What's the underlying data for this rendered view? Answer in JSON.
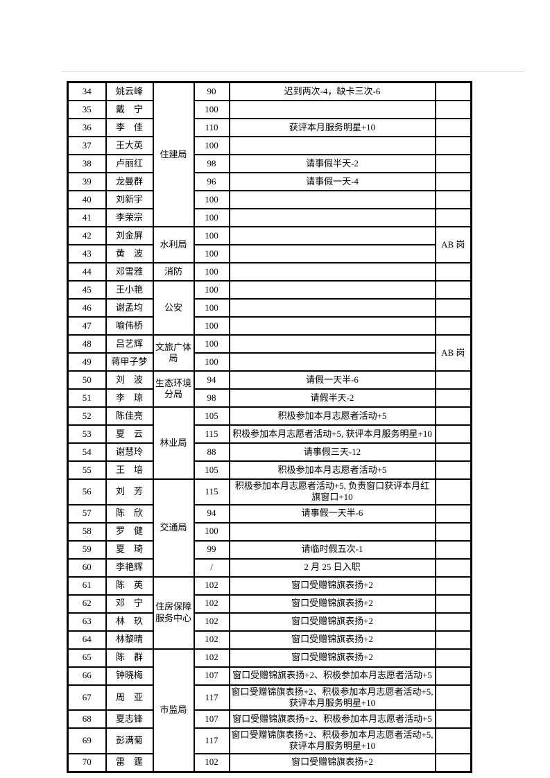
{
  "page": {
    "background": "#ffffff",
    "rule_color": "#dcdcdc"
  },
  "table": {
    "border_color": "#000000",
    "rows": [
      {
        "no": "34",
        "name": "姚云峰",
        "dept": "住建局",
        "dept_span": 8,
        "score": "90",
        "remark": "迟到两次-4，缺卡三次-6",
        "note": "",
        "note_span": 1
      },
      {
        "no": "35",
        "name": "戴　宁",
        "score": "100",
        "remark": "",
        "note": "",
        "note_span": 1
      },
      {
        "no": "36",
        "name": "李　佳",
        "score": "110",
        "remark": "获评本月服务明星+10",
        "note": "",
        "note_span": 1
      },
      {
        "no": "37",
        "name": "王大英",
        "score": "100",
        "remark": "",
        "note": "",
        "note_span": 1
      },
      {
        "no": "38",
        "name": "卢丽红",
        "score": "98",
        "remark": "请事假半天-2",
        "note": "",
        "note_span": 1
      },
      {
        "no": "39",
        "name": "龙曼群",
        "score": "96",
        "remark": "请事假一天-4",
        "note": "",
        "note_span": 1
      },
      {
        "no": "40",
        "name": "刘新宇",
        "score": "100",
        "remark": "",
        "note": "",
        "note_span": 1
      },
      {
        "no": "41",
        "name": "李荣宗",
        "score": "100",
        "remark": "",
        "note": "",
        "note_span": 1
      },
      {
        "no": "42",
        "name": "刘金屏",
        "dept": "水利局",
        "dept_span": 2,
        "score": "100",
        "remark": "",
        "note": "AB 岗",
        "note_span": 2
      },
      {
        "no": "43",
        "name": "黄　波",
        "score": "100",
        "remark": ""
      },
      {
        "no": "44",
        "name": "邓雪雅",
        "dept": "消防",
        "dept_span": 1,
        "score": "100",
        "remark": "",
        "note": "",
        "note_span": 1
      },
      {
        "no": "45",
        "name": "王小艳",
        "dept": "公安",
        "dept_span": 3,
        "score": "100",
        "remark": "",
        "note": "",
        "note_span": 1
      },
      {
        "no": "46",
        "name": "谢孟均",
        "score": "100",
        "remark": "",
        "note": "",
        "note_span": 1
      },
      {
        "no": "47",
        "name": "喻伟桥",
        "score": "100",
        "remark": "",
        "note": "",
        "note_span": 1
      },
      {
        "no": "48",
        "name": "吕艺辉",
        "dept": "文旅广体局",
        "dept_span": 2,
        "score": "100",
        "remark": "",
        "note": "AB 岗",
        "note_span": 2
      },
      {
        "no": "49",
        "name": "蒋甲子梦",
        "score": "100",
        "remark": ""
      },
      {
        "no": "50",
        "name": "刘　波",
        "dept": "生态环境分局",
        "dept_span": 2,
        "score": "94",
        "remark": "请假一天半-6",
        "note": "",
        "note_span": 1
      },
      {
        "no": "51",
        "name": "李　琼",
        "score": "98",
        "remark": "请假半天-2",
        "note": "",
        "note_span": 1
      },
      {
        "no": "52",
        "name": "陈佳亮",
        "dept": "林业局",
        "dept_span": 4,
        "score": "105",
        "remark": "积极参加本月志愿者活动+5",
        "note": "",
        "note_span": 1
      },
      {
        "no": "53",
        "name": "夏　云",
        "score": "115",
        "remark": "积极参加本月志愿者活动+5, 获评本月服务明星+10",
        "note": "",
        "note_span": 1
      },
      {
        "no": "54",
        "name": "谢慧玲",
        "score": "88",
        "remark": "请事假三天-12",
        "note": "",
        "note_span": 1
      },
      {
        "no": "55",
        "name": "王　培",
        "score": "105",
        "remark": "积极参加本月志愿者活动+5",
        "note": "",
        "note_span": 1
      },
      {
        "no": "56",
        "name": "刘　芳",
        "dept": "交通局",
        "dept_span": 5,
        "score": "115",
        "remark": "积极参加本月志愿者活动+5, 负责窗口获评本月红旗窗口+10",
        "note": "",
        "note_span": 1
      },
      {
        "no": "57",
        "name": "陈　欣",
        "score": "94",
        "remark": "请事假一天半-6",
        "note": "",
        "note_span": 1
      },
      {
        "no": "58",
        "name": "罗　健",
        "score": "100",
        "remark": "",
        "note": "",
        "note_span": 1
      },
      {
        "no": "59",
        "name": "夏　琦",
        "score": "99",
        "remark": "请临时假五次-1",
        "note": "",
        "note_span": 1
      },
      {
        "no": "60",
        "name": "李艳辉",
        "score": "/",
        "remark": "2 月 25 日入职",
        "note": "",
        "note_span": 1
      },
      {
        "no": "61",
        "name": "陈　英",
        "dept": "住房保障服务中心",
        "dept_span": 4,
        "score": "102",
        "remark": "窗口受赠锦旗表扬+2",
        "note": "",
        "note_span": 1
      },
      {
        "no": "62",
        "name": "邓　宁",
        "score": "102",
        "remark": "窗口受赠锦旗表扬+2",
        "note": "",
        "note_span": 1
      },
      {
        "no": "63",
        "name": "林　玖",
        "score": "102",
        "remark": "窗口受赠锦旗表扬+2",
        "note": "",
        "note_span": 1
      },
      {
        "no": "64",
        "name": "林黎晴",
        "score": "102",
        "remark": "窗口受赠锦旗表扬+2",
        "note": "",
        "note_span": 1
      },
      {
        "no": "65",
        "name": "陈　群",
        "dept": "市监局",
        "dept_span": 6,
        "score": "102",
        "remark": "窗口受赠锦旗表扬+2",
        "note": "",
        "note_span": 1
      },
      {
        "no": "66",
        "name": "钟晓梅",
        "score": "107",
        "remark": "窗口受赠锦旗表扬+2、积极参加本月志愿者活动+5",
        "note": "",
        "note_span": 1
      },
      {
        "no": "67",
        "name": "周　亚",
        "score": "117",
        "remark": "窗口受赠锦旗表扬+2、积极参加本月志愿者活动+5, 获评本月服务明星+10",
        "note": "",
        "note_span": 1
      },
      {
        "no": "68",
        "name": "夏志锋",
        "score": "107",
        "remark": "窗口受赠锦旗表扬+2、积极参加本月志愿者活动+5",
        "note": "",
        "note_span": 1
      },
      {
        "no": "69",
        "name": "彭满菊",
        "score": "117",
        "remark": "窗口受赠锦旗表扬+2、积极参加本月志愿者活动+5, 获评本月服务明星+10",
        "note": "",
        "note_span": 1
      },
      {
        "no": "70",
        "name": "雷　霆",
        "score": "102",
        "remark": "窗口受赠锦旗表扬+2",
        "note": "",
        "note_span": 1
      }
    ]
  }
}
